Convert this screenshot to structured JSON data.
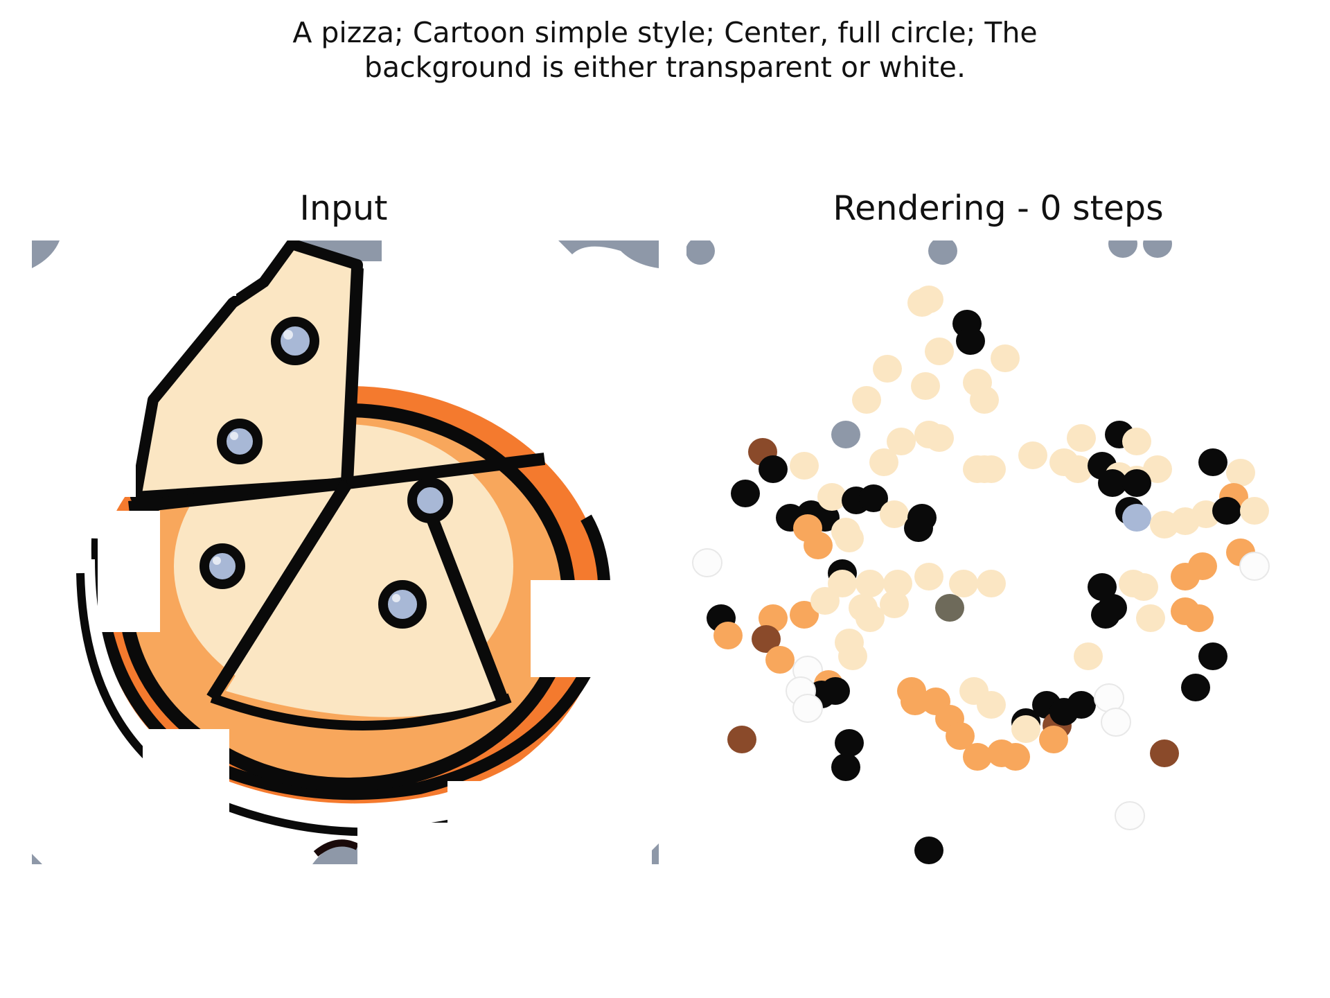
{
  "suptitle": {
    "line1": "A pizza; Cartoon simple style; Center, full circle; The",
    "line2": "background is either transparent or white."
  },
  "panels": {
    "left_title": "Input",
    "right_title": "Rendering - 0 steps"
  },
  "colors": {
    "background": "#ffffff",
    "cheese": "#fbe6c3",
    "crust_orange": "#f8a75c",
    "deep_orange": "#f47a2e",
    "outline": "#0a0a0a",
    "olive_blue": "#a8b8d6",
    "slate_gray": "#8e98a8",
    "brown": "#8a4a2a"
  }
}
